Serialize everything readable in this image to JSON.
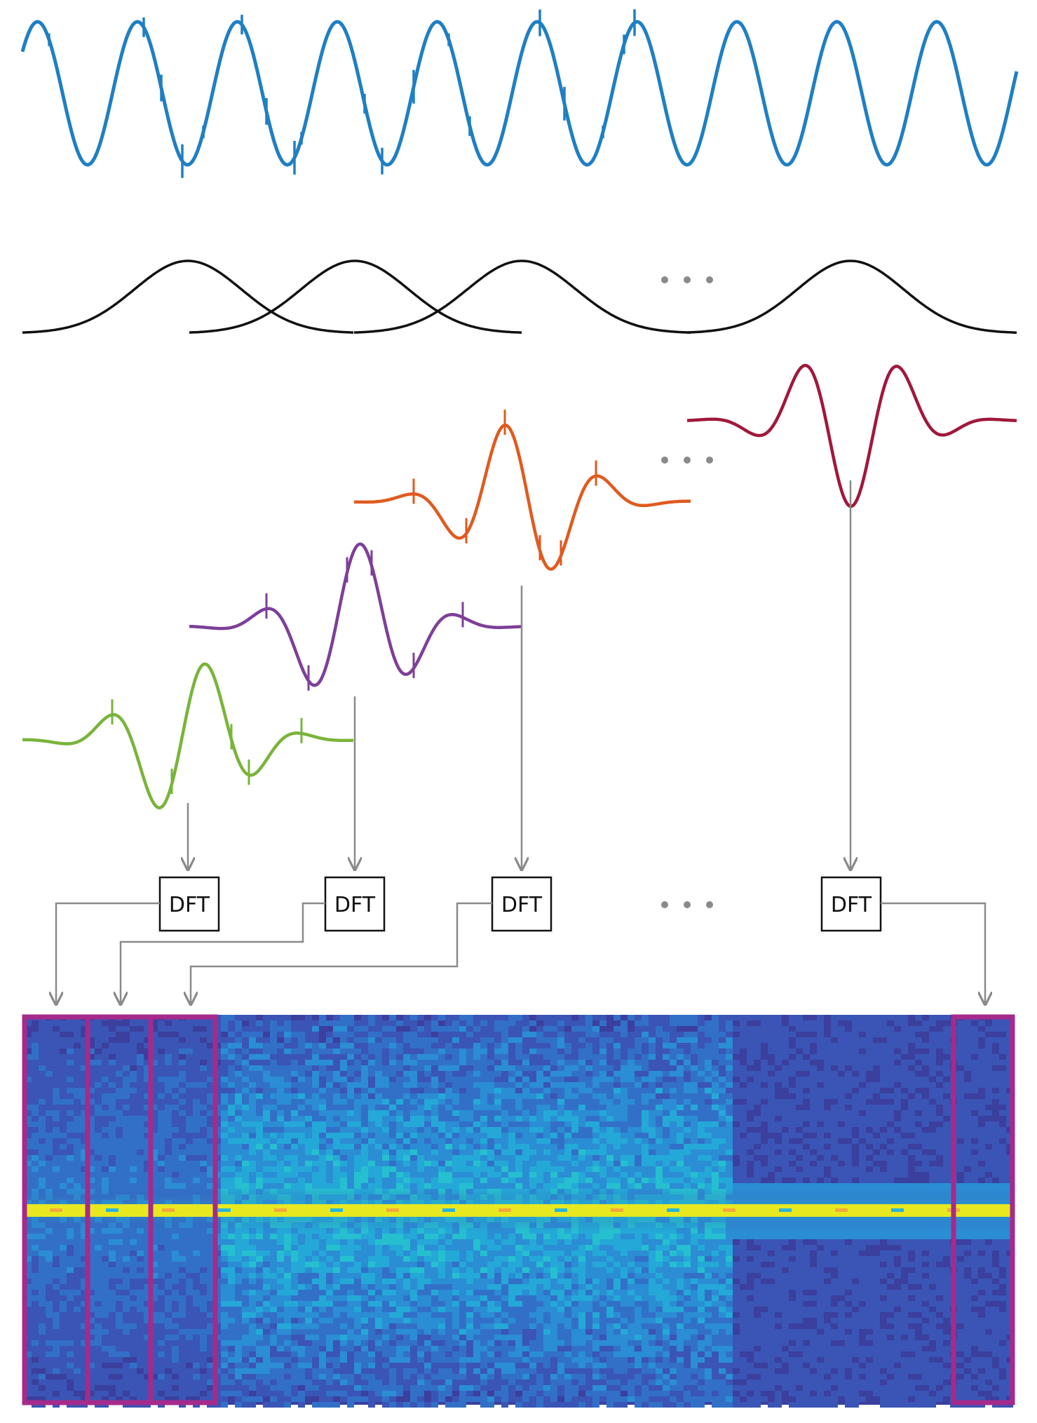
{
  "diagram": {
    "dft_blocks": [
      {
        "label": "DFT"
      },
      {
        "label": "DFT"
      },
      {
        "label": "DFT"
      },
      {
        "label": "DFT"
      }
    ],
    "colors": {
      "signal": "#1f7fc4",
      "window": "#111111",
      "segment_1": "#79b43a",
      "segment_2": "#7d3f98",
      "segment_3": "#e05a1f",
      "segment_last": "#a0183a",
      "arrow": "#8a8a8a",
      "highlight": "#a52a8c",
      "spectrogram_bg": "#3b3f9e",
      "spectrogram_ridge": "#e8e821"
    },
    "icons": [
      "ellipsis-icon"
    ]
  }
}
